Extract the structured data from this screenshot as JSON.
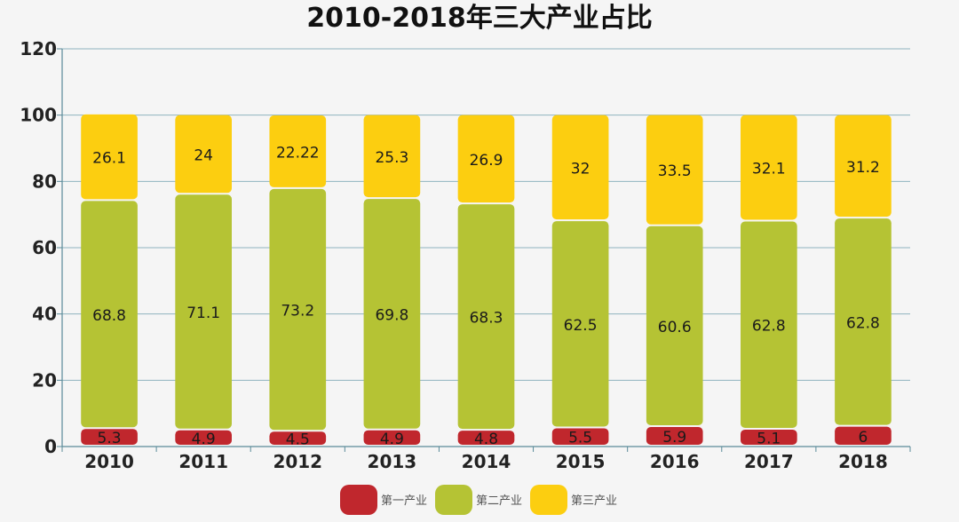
{
  "chart_data": {
    "type": "bar",
    "stacked": true,
    "title": "2010-2018年三大产业占比",
    "categories": [
      "2010",
      "2011",
      "2012",
      "2013",
      "2014",
      "2015",
      "2016",
      "2017",
      "2018"
    ],
    "ylim": [
      0,
      120
    ],
    "yticks": [
      "0",
      "20",
      "40",
      "60",
      "80",
      "100",
      "120"
    ],
    "grid": true,
    "legend_position": "bottom",
    "series": [
      {
        "name": "第一产业",
        "color": "#c0272d",
        "values": [
          5.3,
          4.9,
          4.5,
          4.9,
          4.8,
          5.5,
          5.9,
          5.1,
          6
        ],
        "labels": [
          "5.3",
          "4.9",
          "4.5",
          "4.9",
          "4.8",
          "5.5",
          "5.9",
          "5.1",
          "6"
        ]
      },
      {
        "name": "第二产业",
        "color": "#b5c334",
        "values": [
          68.8,
          71.1,
          73.2,
          69.8,
          68.3,
          62.5,
          60.6,
          62.8,
          62.8
        ],
        "labels": [
          "68.8",
          "71.1",
          "73.2",
          "69.8",
          "68.3",
          "62.5",
          "60.6",
          "62.8",
          "62.8"
        ]
      },
      {
        "name": "第三产业",
        "color": "#fcce10",
        "values": [
          26.1,
          24,
          22.22,
          25.3,
          26.9,
          32,
          33.5,
          32.1,
          31.2
        ],
        "labels": [
          "26.1",
          "24",
          "22.22",
          "25.3",
          "26.9",
          "32",
          "33.5",
          "32.1",
          "31.2"
        ]
      }
    ]
  }
}
